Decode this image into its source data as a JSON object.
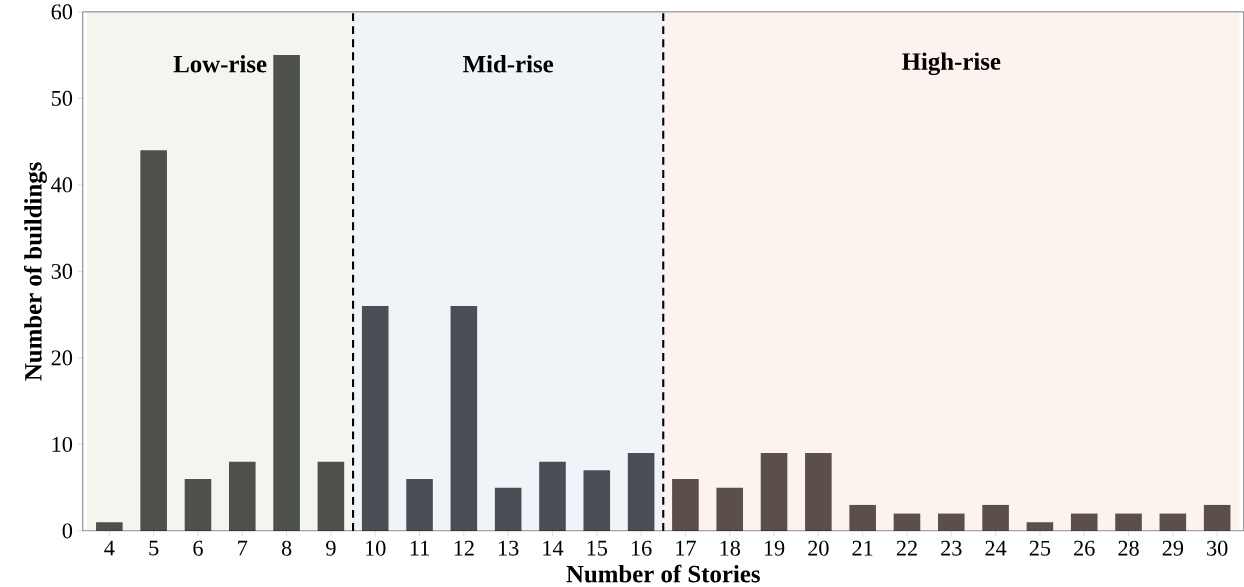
{
  "chart_data": {
    "type": "bar",
    "xlabel": "Number of Stories",
    "ylabel": "Number of buildings",
    "categories": [
      "4",
      "5",
      "6",
      "7",
      "8",
      "9",
      "10",
      "11",
      "12",
      "13",
      "14",
      "15",
      "16",
      "17",
      "18",
      "19",
      "20",
      "21",
      "22",
      "23",
      "24",
      "25",
      "26",
      "28",
      "29",
      "30"
    ],
    "values": [
      1,
      44,
      6,
      8,
      55,
      8,
      26,
      6,
      26,
      5,
      8,
      7,
      9,
      6,
      5,
      9,
      9,
      3,
      2,
      2,
      3,
      1,
      2,
      2,
      2,
      3
    ],
    "colors": [
      "#4d514a",
      "#4d514a",
      "#4d514a",
      "#4d514a",
      "#4d514a",
      "#4d514a",
      "#4a4e55",
      "#4a4e55",
      "#4a4e55",
      "#4a4e55",
      "#4a4e55",
      "#4a4e55",
      "#4a4e55",
      "#5a4f4a",
      "#5a4f4a",
      "#5a4f4a",
      "#5a4f4a",
      "#5a4f4a",
      "#5a4f4a",
      "#5a4f4a",
      "#5a4f4a",
      "#5a4f4a",
      "#5a4f4a",
      "#5a4f4a",
      "#5a4f4a",
      "#5a4f4a"
    ],
    "ylim": [
      0,
      60
    ],
    "yticks": [
      0,
      10,
      20,
      30,
      40,
      50,
      60
    ],
    "bands": [
      {
        "axis": "x",
        "from": "4",
        "to": "9",
        "label": "Low-rise",
        "color": "#f3f6ee"
      },
      {
        "axis": "x",
        "from": "10",
        "to": "16",
        "label": "Mid-rise",
        "color": "#eff4f9"
      },
      {
        "axis": "x",
        "from": "17",
        "to": "30",
        "label": "High-rise",
        "color": "#fcf3ee"
      }
    ],
    "grid": false
  }
}
